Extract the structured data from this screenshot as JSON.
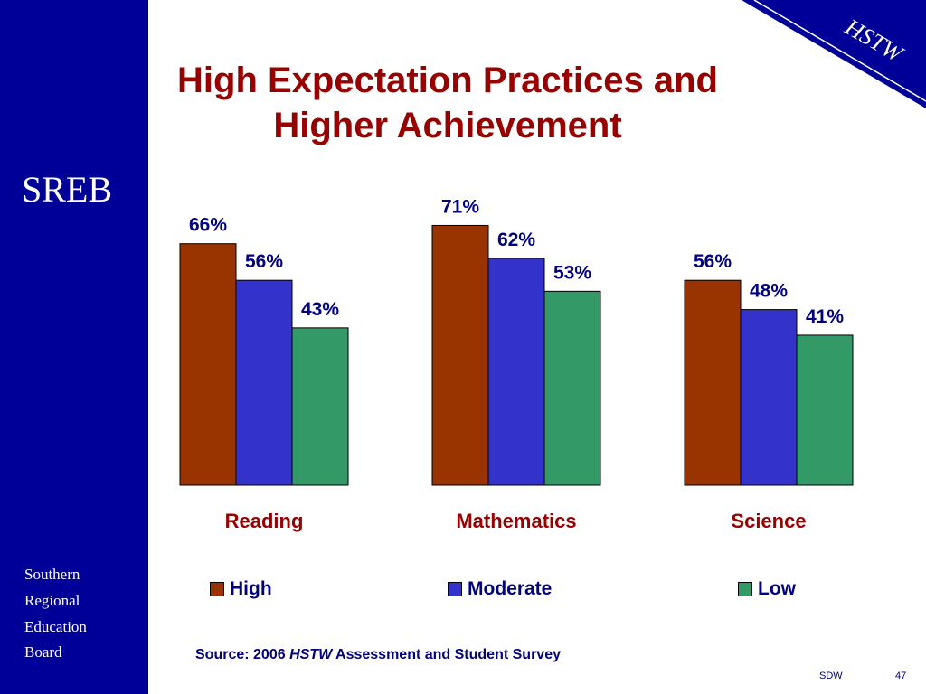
{
  "slide": {
    "title_line1": "High Expectation Practices and",
    "title_line2": "Higher Achievement",
    "logo": "SREB",
    "org_lines": [
      "Southern",
      "Regional",
      "Education",
      "Board"
    ],
    "corner_label": "HSTW",
    "source_prefix": "Source: 2006 ",
    "source_italic": "HSTW",
    "source_suffix": " Assessment and Student Survey",
    "footer_left": "SDW",
    "footer_right": "47"
  },
  "colors": {
    "sidebar": "#000099",
    "title": "#990000",
    "text": "#000080",
    "high": "#993300",
    "moderate": "#3333cc",
    "low": "#339966",
    "category_label": "#990000"
  },
  "chart_data": {
    "type": "bar",
    "title": "High Expectation Practices and Higher Achievement",
    "categories": [
      "Reading",
      "Mathematics",
      "Science"
    ],
    "series": [
      {
        "name": "High",
        "values": [
          66,
          71,
          56
        ],
        "labels": [
          "66%",
          "71%",
          "56%"
        ]
      },
      {
        "name": "Moderate",
        "values": [
          56,
          62,
          48
        ],
        "labels": [
          "56%",
          "62%",
          "48%"
        ]
      },
      {
        "name": "Low",
        "values": [
          43,
          53,
          41
        ],
        "labels": [
          "43%",
          "53%",
          "41%"
        ]
      }
    ],
    "unit": "%",
    "grid": false,
    "legend": "bottom"
  }
}
